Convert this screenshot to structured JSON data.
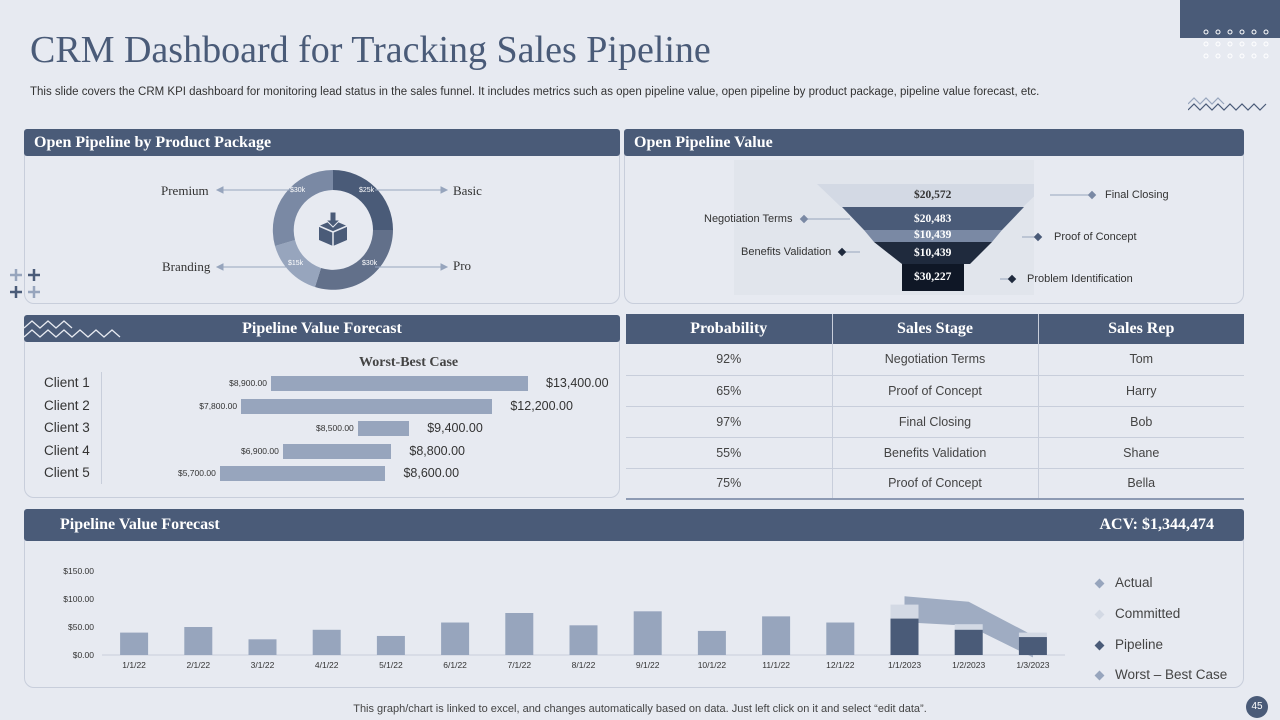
{
  "title": "CRM Dashboard for Tracking Sales Pipeline",
  "subtitle": "This slide covers the CRM KPI dashboard for monitoring lead status in the sales funnel. It includes metrics such as open pipeline value, open pipeline by product package, pipeline value forecast, etc.",
  "panels": {
    "product_package": "Open Pipeline by Product Package",
    "pipeline_value": "Open Pipeline Value",
    "forecast_small": "Pipeline Value Forecast",
    "forecast_big": "Pipeline Value Forecast",
    "acv": "ACV: $1,344,474"
  },
  "donut": {
    "labels": {
      "premium": "Premium",
      "basic": "Basic",
      "branding": "Branding",
      "pro": "Pro"
    },
    "values": {
      "premium": "$30k",
      "basic": "$25k",
      "branding": "$15k",
      "pro": "$30k"
    },
    "icon": "box-download-icon"
  },
  "funnel": {
    "levels": [
      "$20,572",
      "$20,483",
      "$10,439",
      "$10,439",
      "$30,227"
    ],
    "labels": {
      "l1": "Final Closing",
      "l2": "Negotiation Terms",
      "l3": "Proof of Concept",
      "l4": "Benefits Validation",
      "l5": "Problem Identification"
    }
  },
  "forecast_chart_title": "Worst-Best Case",
  "clients": [
    {
      "name": "Client 1",
      "worst": "$8,900.00",
      "best": "$13,400.00"
    },
    {
      "name": "Client 2",
      "worst": "$7,800.00",
      "best": "$12,200.00"
    },
    {
      "name": "Client 3",
      "worst": "$8,500.00",
      "best": "$9,400.00"
    },
    {
      "name": "Client 4",
      "worst": "$6,900.00",
      "best": "$8,800.00"
    },
    {
      "name": "Client 5",
      "worst": "$5,700.00",
      "best": "$8,600.00"
    }
  ],
  "table": {
    "headers": [
      "Probability",
      "Sales Stage",
      "Sales Rep"
    ],
    "rows": [
      [
        "92%",
        "Negotiation Terms",
        "Tom"
      ],
      [
        "65%",
        "Proof of Concept",
        "Harry"
      ],
      [
        "97%",
        "Final Closing",
        "Bob"
      ],
      [
        "55%",
        "Benefits Validation",
        "Shane"
      ],
      [
        "75%",
        "Proof of Concept",
        "Bella"
      ]
    ]
  },
  "chart_data": {
    "type": "bar",
    "categories": [
      "1/1/22",
      "2/1/22",
      "3/1/22",
      "4/1/22",
      "5/1/22",
      "6/1/22",
      "7/1/22",
      "8/1/22",
      "9/1/22",
      "10/1/22",
      "11/1/22",
      "12/1/22",
      "1/1/2023",
      "1/2/2023",
      "1/3/2023"
    ],
    "series": [
      {
        "name": "Actual",
        "values": [
          40,
          50,
          28,
          45,
          34,
          58,
          75,
          53,
          78,
          43,
          69,
          58,
          null,
          null,
          null
        ]
      },
      {
        "name": "Committed",
        "values": [
          null,
          null,
          null,
          null,
          null,
          null,
          null,
          null,
          null,
          null,
          null,
          null,
          90,
          55,
          40
        ]
      },
      {
        "name": "Pipeline",
        "values": [
          null,
          null,
          null,
          null,
          null,
          null,
          null,
          null,
          null,
          null,
          null,
          null,
          65,
          45,
          32
        ]
      },
      {
        "name": "Worst – Best Case",
        "values": [
          null,
          null,
          null,
          null,
          null,
          null,
          null,
          null,
          null,
          null,
          null,
          null,
          105,
          95,
          35
        ]
      }
    ],
    "yticks": [
      "$150.00",
      "$100.00",
      "$50.00",
      "$0.00"
    ],
    "ylim": [
      0,
      150
    ],
    "legend_position": "right",
    "colors": {
      "Actual": "#97a5bd",
      "Committed": "#d3d9e4",
      "Pipeline": "#4a5b78",
      "Worst – Best Case": "#97a5bd"
    }
  },
  "legend_labels": [
    "Actual",
    "Committed",
    "Pipeline",
    "Worst – Best Case"
  ],
  "footer": "This graph/chart is linked to excel,  and changes automatically based on data. Just left click on it and select “edit data”.",
  "page_number": "45"
}
